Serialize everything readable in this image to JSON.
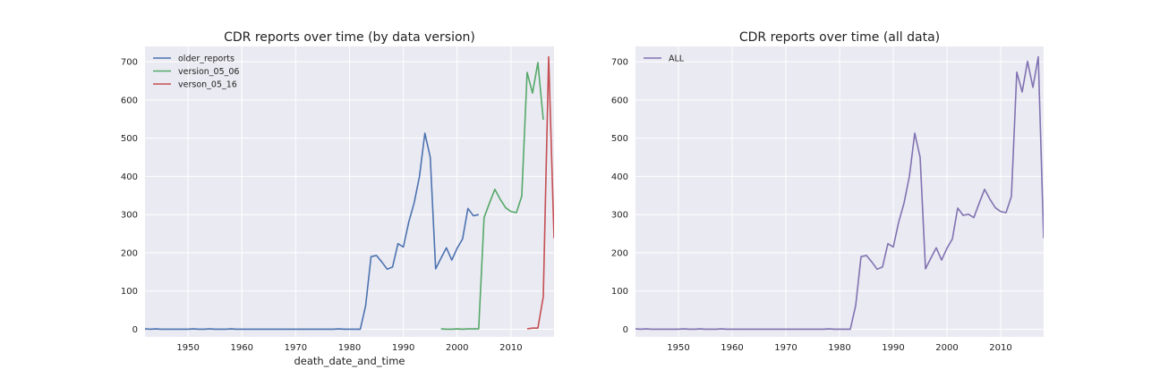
{
  "chart_data": [
    {
      "type": "line",
      "title": "CDR reports over time (by data version)",
      "xlabel": "death_date_and_time",
      "ylabel": "",
      "xlim": [
        1942,
        2018
      ],
      "ylim": [
        -20,
        740
      ],
      "xticks": [
        1950,
        1960,
        1970,
        1980,
        1990,
        2000,
        2010
      ],
      "yticks": [
        0,
        100,
        200,
        300,
        400,
        500,
        600,
        700
      ],
      "grid": true,
      "legend": "top-left",
      "series": [
        {
          "name": "older_reports",
          "color": "#4c72b0",
          "x": [
            1942,
            1943,
            1944,
            1945,
            1946,
            1947,
            1948,
            1949,
            1950,
            1951,
            1952,
            1953,
            1954,
            1955,
            1956,
            1957,
            1958,
            1959,
            1960,
            1961,
            1962,
            1963,
            1964,
            1965,
            1966,
            1967,
            1968,
            1969,
            1970,
            1971,
            1972,
            1973,
            1974,
            1975,
            1976,
            1977,
            1978,
            1979,
            1980,
            1981,
            1982,
            1983,
            1984,
            1985,
            1986,
            1987,
            1988,
            1989,
            1990,
            1991,
            1992,
            1993,
            1994,
            1995,
            1996,
            1997,
            1998,
            1999,
            2000,
            2001,
            2002,
            2003,
            2004
          ],
          "y": [
            1,
            0,
            1,
            0,
            0,
            0,
            0,
            0,
            0,
            1,
            0,
            0,
            1,
            0,
            0,
            0,
            1,
            0,
            0,
            0,
            0,
            0,
            0,
            0,
            0,
            0,
            0,
            0,
            0,
            0,
            0,
            0,
            0,
            0,
            0,
            0,
            1,
            0,
            0,
            0,
            0,
            62,
            190,
            193,
            176,
            157,
            163,
            224,
            215,
            280,
            330,
            400,
            513,
            450,
            158,
            186,
            213,
            181,
            212,
            236,
            316,
            297,
            300
          ]
        },
        {
          "name": "version_05_06",
          "color": "#55a868",
          "x": [
            1997,
            1998,
            1999,
            2000,
            2001,
            2002,
            2003,
            2004,
            2005,
            2006,
            2007,
            2008,
            2009,
            2010,
            2011,
            2012,
            2013,
            2014,
            2015,
            2016
          ],
          "y": [
            1,
            0,
            0,
            1,
            0,
            1,
            1,
            1,
            292,
            330,
            366,
            340,
            318,
            308,
            305,
            348,
            672,
            618,
            698,
            548
          ]
        },
        {
          "name": "verson_05_16",
          "color": "#c44e52",
          "x": [
            2013,
            2014,
            2015,
            2016,
            2017,
            2018
          ],
          "y": [
            1,
            3,
            3,
            85,
            713,
            238
          ]
        }
      ]
    },
    {
      "type": "line",
      "title": "CDR reports over time (all data)",
      "xlabel": "",
      "ylabel": "",
      "xlim": [
        1942,
        2018
      ],
      "ylim": [
        -20,
        740
      ],
      "xticks": [
        1950,
        1960,
        1970,
        1980,
        1990,
        2000,
        2010
      ],
      "yticks": [
        0,
        100,
        200,
        300,
        400,
        500,
        600,
        700
      ],
      "grid": true,
      "legend": "top-left",
      "series": [
        {
          "name": "ALL",
          "color": "#8172b2",
          "x": [
            1942,
            1943,
            1944,
            1945,
            1946,
            1947,
            1948,
            1949,
            1950,
            1951,
            1952,
            1953,
            1954,
            1955,
            1956,
            1957,
            1958,
            1959,
            1960,
            1961,
            1962,
            1963,
            1964,
            1965,
            1966,
            1967,
            1968,
            1969,
            1970,
            1971,
            1972,
            1973,
            1974,
            1975,
            1976,
            1977,
            1978,
            1979,
            1980,
            1981,
            1982,
            1983,
            1984,
            1985,
            1986,
            1987,
            1988,
            1989,
            1990,
            1991,
            1992,
            1993,
            1994,
            1995,
            1996,
            1997,
            1998,
            1999,
            2000,
            2001,
            2002,
            2003,
            2004,
            2005,
            2006,
            2007,
            2008,
            2009,
            2010,
            2011,
            2012,
            2013,
            2014,
            2015,
            2016,
            2017,
            2018
          ],
          "y": [
            1,
            0,
            1,
            0,
            0,
            0,
            0,
            0,
            0,
            1,
            0,
            0,
            1,
            0,
            0,
            0,
            1,
            0,
            0,
            0,
            0,
            0,
            0,
            0,
            0,
            0,
            0,
            0,
            0,
            0,
            0,
            0,
            0,
            0,
            0,
            0,
            1,
            0,
            0,
            0,
            0,
            62,
            190,
            193,
            176,
            157,
            163,
            224,
            215,
            280,
            330,
            400,
            513,
            450,
            158,
            186,
            213,
            181,
            212,
            236,
            317,
            298,
            301,
            292,
            330,
            366,
            340,
            318,
            308,
            305,
            348,
            673,
            621,
            701,
            633,
            713,
            238
          ]
        }
      ]
    }
  ]
}
